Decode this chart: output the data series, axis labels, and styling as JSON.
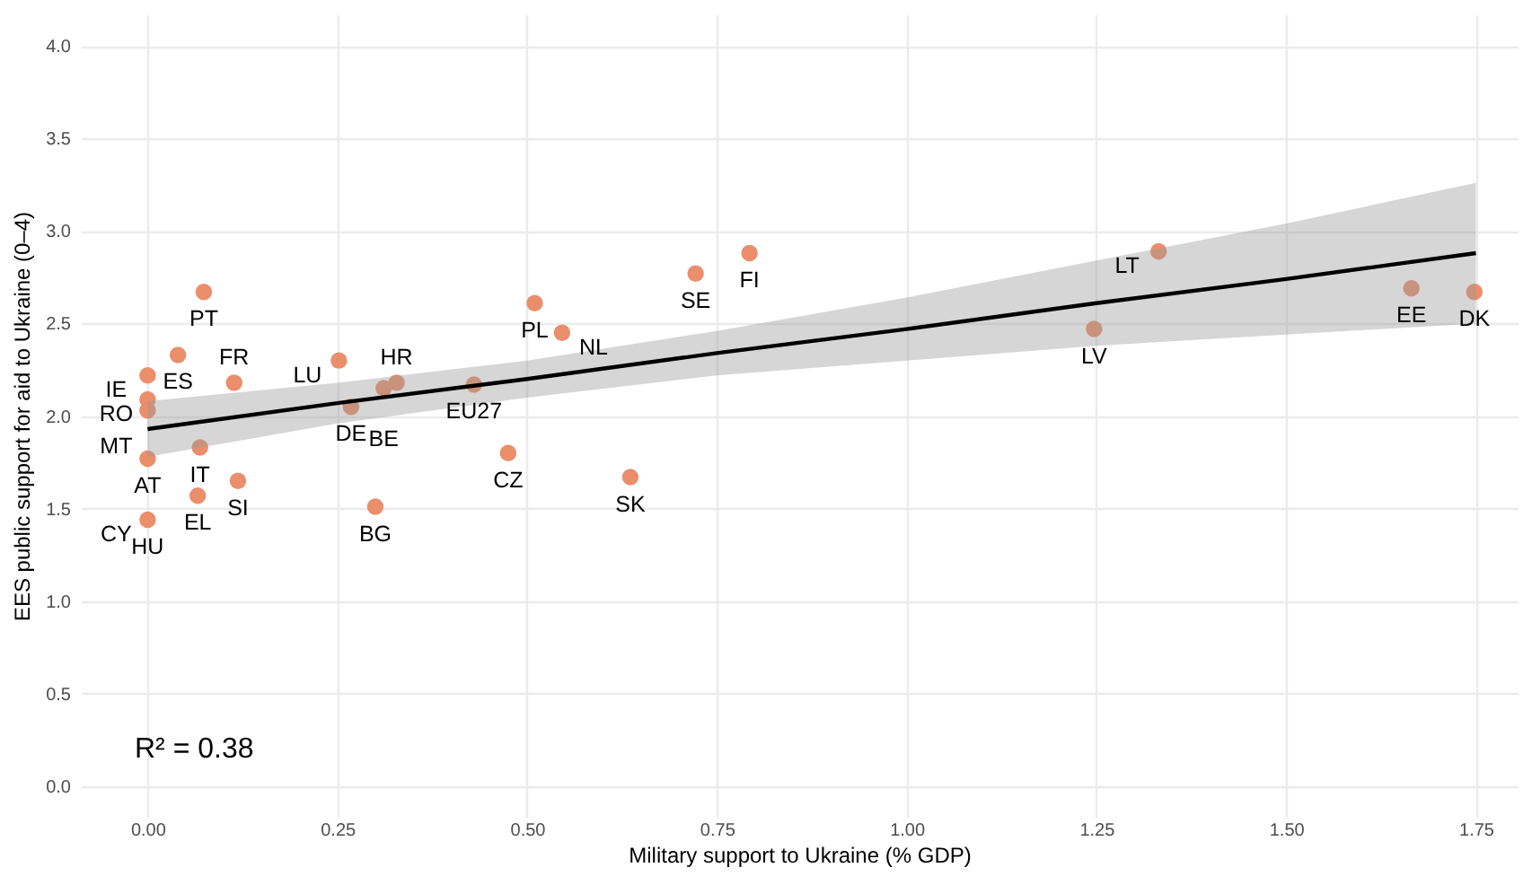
{
  "chart_data": {
    "type": "scatter",
    "xlabel": "Military support to Ukraine (% GDP)",
    "ylabel": "EES public support for aid to Ukraine (0–4)",
    "xlim": [
      -0.088,
      1.805
    ],
    "ylim": [
      -0.165,
      4.17
    ],
    "xticks": [
      {
        "value": 0,
        "label": "0.00"
      },
      {
        "value": 0.25,
        "label": "0.25"
      },
      {
        "value": 0.5,
        "label": "0.50"
      },
      {
        "value": 0.75,
        "label": "0.75"
      },
      {
        "value": 1,
        "label": "1.00"
      },
      {
        "value": 1.25,
        "label": "1.25"
      },
      {
        "value": 1.5,
        "label": "1.50"
      },
      {
        "value": 1.75,
        "label": "1.75"
      }
    ],
    "yticks": [
      {
        "value": 0,
        "label": "0.0"
      },
      {
        "value": 0.5,
        "label": "0.5"
      },
      {
        "value": 1,
        "label": "1.0"
      },
      {
        "value": 1.5,
        "label": "1.5"
      },
      {
        "value": 2,
        "label": "2.0"
      },
      {
        "value": 2.5,
        "label": "2.5"
      },
      {
        "value": 3,
        "label": "3.0"
      },
      {
        "value": 3.5,
        "label": "3.5"
      },
      {
        "value": 4,
        "label": "4.0"
      }
    ],
    "grid": true,
    "marker": "circle",
    "series": [
      {
        "color": "#ea8e6c",
        "x": [
          0.074,
          0.04,
          0,
          0.114,
          0,
          0,
          0,
          0.069,
          0.119,
          0.066,
          0,
          0.252,
          0.328,
          0.311,
          0.268,
          0.43,
          0.3,
          0.51,
          0.546,
          0.475,
          0.636,
          0.722,
          0.793,
          1.332,
          1.247,
          1.665,
          1.748
        ],
        "values": [
          2.67,
          2.33,
          2.22,
          2.18,
          2.09,
          2.03,
          1.77,
          1.83,
          1.65,
          1.57,
          1.44,
          2.3,
          2.18,
          2.15,
          2.05,
          2.17,
          1.51,
          2.61,
          2.45,
          1.8,
          1.67,
          2.77,
          2.88,
          2.89,
          2.47,
          2.69,
          2.67
        ]
      },
      {
        "type": "line",
        "marker": "none",
        "color": "#000000",
        "x": [
          0,
          0.25,
          0.5,
          0.75,
          1,
          1.25,
          1.5,
          1.75
        ],
        "values": [
          1.93,
          2.07,
          2.2,
          2.34,
          2.47,
          2.61,
          2.74,
          2.88
        ],
        "lower": [
          1.78,
          1.96,
          2.1,
          2.22,
          2.3,
          2.38,
          2.44,
          2.5
        ],
        "upper": [
          2.08,
          2.18,
          2.3,
          2.46,
          2.64,
          2.84,
          3.04,
          3.26
        ]
      }
    ],
    "annotations": [
      {
        "text": "PT",
        "x": 0.074,
        "y": 2.67
      },
      {
        "text": "ES",
        "x": 0.04,
        "y": 2.33
      },
      {
        "text": "IE",
        "x": 0,
        "y": 2.22
      },
      {
        "text": "FR",
        "x": 0.114,
        "y": 2.18
      },
      {
        "text": "RO",
        "x": 0,
        "y": 2.09
      },
      {
        "text": "MT",
        "x": 0,
        "y": 2.03
      },
      {
        "text": "AT",
        "x": 0,
        "y": 1.77
      },
      {
        "text": "IT",
        "x": 0.069,
        "y": 1.83
      },
      {
        "text": "SI",
        "x": 0.119,
        "y": 1.65
      },
      {
        "text": "EL",
        "x": 0.066,
        "y": 1.57
      },
      {
        "text": "HU",
        "x": 0,
        "y": 1.44
      },
      {
        "text": "CY",
        "x": 0,
        "y": 1.44
      },
      {
        "text": "LU",
        "x": 0.252,
        "y": 2.3
      },
      {
        "text": "HR",
        "x": 0.328,
        "y": 2.18
      },
      {
        "text": "BE",
        "x": 0.311,
        "y": 2.15
      },
      {
        "text": "DE",
        "x": 0.268,
        "y": 2.05
      },
      {
        "text": "EU27",
        "x": 0.43,
        "y": 2.17
      },
      {
        "text": "BG",
        "x": 0.3,
        "y": 1.51
      },
      {
        "text": "PL",
        "x": 0.51,
        "y": 2.61
      },
      {
        "text": "NL",
        "x": 0.546,
        "y": 2.45
      },
      {
        "text": "CZ",
        "x": 0.475,
        "y": 1.8
      },
      {
        "text": "SK",
        "x": 0.636,
        "y": 1.67
      },
      {
        "text": "SE",
        "x": 0.722,
        "y": 2.77
      },
      {
        "text": "FI",
        "x": 0.793,
        "y": 2.88
      },
      {
        "text": "LT",
        "x": 1.332,
        "y": 2.89
      },
      {
        "text": "LV",
        "x": 1.247,
        "y": 2.47
      },
      {
        "text": "EE",
        "x": 1.665,
        "y": 2.69
      },
      {
        "text": "DK",
        "x": 1.748,
        "y": 2.67
      },
      "R² = 0.38"
    ]
  }
}
